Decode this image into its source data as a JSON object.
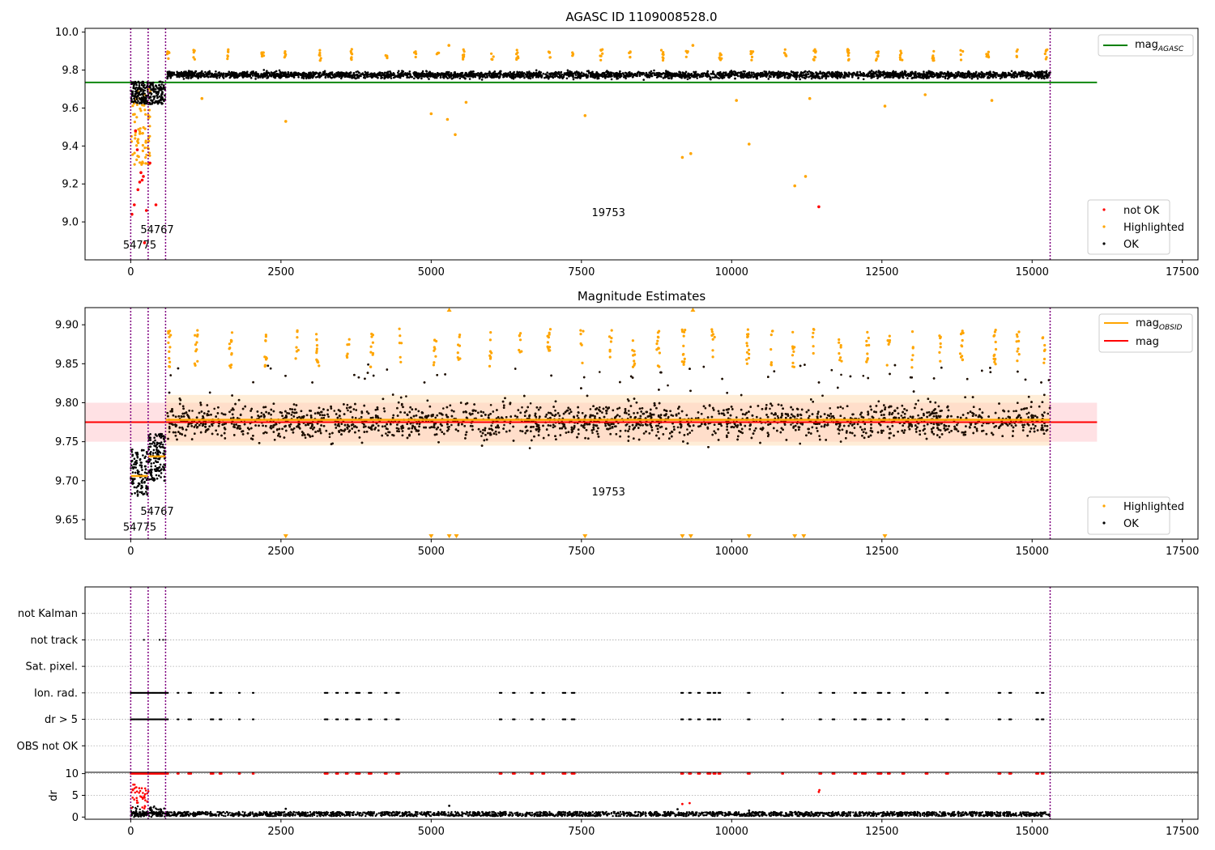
{
  "chart_data": [
    {
      "type": "scatter",
      "title": "AGASC ID 1109008528.0",
      "xlim": [
        -760,
        17760
      ],
      "ylim": [
        8.8,
        10.02
      ],
      "xticks": [
        "0",
        "2500",
        "5000",
        "7500",
        "10000",
        "12500",
        "15000",
        "17500"
      ],
      "yticks": [
        "9.0",
        "9.2",
        "9.4",
        "9.6",
        "9.8",
        "10.0"
      ],
      "xtick_values": [
        0,
        2500,
        5000,
        7500,
        10000,
        12500,
        15000,
        17500
      ],
      "ytick_values": [
        9.0,
        9.2,
        9.4,
        9.6,
        9.8,
        10.0
      ],
      "vlines": [
        0,
        290,
        580,
        15300
      ],
      "mag_agasc": 9.735,
      "mag_agasc_xrange": [
        -760,
        16080
      ],
      "obsid_labels": [
        {
          "text": "54775",
          "x": 150,
          "y": 8.86
        },
        {
          "text": "54767",
          "x": 440,
          "y": 8.94
        },
        {
          "text": "19753",
          "x": 7950,
          "y": 9.03
        }
      ],
      "ok_band": {
        "early": [
          9.62,
          9.74
        ],
        "main": [
          9.72,
          9.83
        ]
      },
      "highlighted_points": [
        [
          5295,
          9.93
        ],
        [
          9355,
          9.93
        ],
        [
          1185,
          9.65
        ],
        [
          2580,
          9.53
        ],
        [
          5000,
          9.57
        ],
        [
          5270,
          9.54
        ],
        [
          5400,
          9.46
        ],
        [
          5580,
          9.63
        ],
        [
          7560,
          9.56
        ],
        [
          9180,
          9.34
        ],
        [
          9320,
          9.36
        ],
        [
          10080,
          9.64
        ],
        [
          10290,
          9.41
        ],
        [
          11230,
          9.24
        ],
        [
          11300,
          9.65
        ],
        [
          12550,
          9.61
        ],
        [
          13220,
          9.67
        ],
        [
          14330,
          9.64
        ],
        [
          11050,
          9.19
        ]
      ],
      "not_ok_points": [
        [
          20,
          9.04
        ],
        [
          60,
          9.09
        ],
        [
          120,
          9.17
        ],
        [
          150,
          9.21
        ],
        [
          170,
          9.26
        ],
        [
          190,
          9.22
        ],
        [
          210,
          9.24
        ],
        [
          260,
          9.06
        ],
        [
          320,
          9.31
        ],
        [
          420,
          9.09
        ],
        [
          80,
          9.48
        ],
        [
          110,
          9.38
        ],
        [
          230,
          8.89
        ],
        [
          11450,
          9.08
        ]
      ],
      "legend": {
        "mag_line": "mag",
        "mag_sub": "AGASC",
        "not_ok": "not OK",
        "highlighted": "Highlighted",
        "ok": "OK"
      },
      "colors": {
        "ok": "#000000",
        "highlighted": "#ffa500",
        "not_ok": "#ff0000",
        "mag_agasc": "#008000",
        "vline": "#800080"
      }
    },
    {
      "type": "scatter",
      "title": "Magnitude Estimates",
      "xlim": [
        -760,
        17760
      ],
      "ylim": [
        9.625,
        9.922
      ],
      "xticks": [
        "0",
        "2500",
        "5000",
        "7500",
        "10000",
        "12500",
        "15000",
        "17500"
      ],
      "yticks": [
        "9.65",
        "9.70",
        "9.75",
        "9.80",
        "9.85",
        "9.90"
      ],
      "xtick_values": [
        0,
        2500,
        5000,
        7500,
        10000,
        12500,
        15000,
        17500
      ],
      "ytick_values": [
        9.65,
        9.7,
        9.75,
        9.8,
        9.85,
        9.9
      ],
      "vlines": [
        0,
        290,
        580,
        15300
      ],
      "mag": 9.775,
      "mag_band": [
        9.75,
        9.8
      ],
      "mag_xrange": [
        -760,
        16080
      ],
      "mag_obsid_segments": [
        {
          "x": [
            0,
            290
          ],
          "y": 9.706
        },
        {
          "x": [
            290,
            580
          ],
          "y": 9.731
        },
        {
          "x": [
            580,
            15300
          ],
          "y": 9.778
        }
      ],
      "obsid_labels": [
        {
          "text": "54775",
          "x": 150,
          "y": 9.636
        },
        {
          "text": "54767",
          "x": 440,
          "y": 9.656
        },
        {
          "text": "19753",
          "x": 7950,
          "y": 9.681
        }
      ],
      "legend": {
        "mag_obsid": "mag",
        "mag_obsid_sub": "OBSID",
        "mag": "mag",
        "highlighted": "Highlighted",
        "ok": "OK"
      },
      "colors": {
        "ok": "#000000",
        "highlighted": "#ffa500",
        "mag": "#ff0000",
        "mag_obsid": "#ffa500",
        "band": "#ffc8cd",
        "vline": "#800080"
      }
    },
    {
      "type": "scatter",
      "xlim": [
        -760,
        17760
      ],
      "ylim": [
        0,
        7
      ],
      "categories": [
        "not Kalman",
        "not track",
        "Sat. pixel.",
        "Ion. rad.",
        "dr > 5",
        "OBS not OK"
      ],
      "category_levels": [
        6,
        5,
        4,
        3,
        2,
        1
      ],
      "flag_segments": [
        [
          0,
          290
        ],
        [
          290,
          580
        ],
        [
          590,
          620
        ],
        [
          780,
          800
        ],
        [
          960,
          1010
        ],
        [
          1330,
          1380
        ],
        [
          1480,
          1520
        ],
        [
          1800,
          1820
        ],
        [
          2030,
          2050
        ],
        [
          3230,
          3280
        ],
        [
          3420,
          3450
        ],
        [
          3580,
          3610
        ],
        [
          3750,
          3810
        ],
        [
          3960,
          4010
        ],
        [
          4230,
          4270
        ],
        [
          4420,
          4470
        ],
        [
          6140,
          6180
        ],
        [
          6360,
          6400
        ],
        [
          6660,
          6690
        ],
        [
          6850,
          6890
        ],
        [
          7190,
          7240
        ],
        [
          7340,
          7390
        ],
        [
          9160,
          9190
        ],
        [
          9290,
          9330
        ],
        [
          9440,
          9480
        ],
        [
          9600,
          9650
        ],
        [
          9700,
          9740
        ],
        [
          9780,
          9820
        ],
        [
          10270,
          10300
        ],
        [
          10840,
          10860
        ],
        [
          11460,
          11490
        ],
        [
          11680,
          11710
        ],
        [
          12040,
          12070
        ],
        [
          12170,
          12240
        ],
        [
          12430,
          12490
        ],
        [
          12600,
          12640
        ],
        [
          12840,
          12880
        ],
        [
          13230,
          13260
        ],
        [
          13570,
          13600
        ],
        [
          14440,
          14470
        ],
        [
          14620,
          14650
        ],
        [
          15070,
          15110
        ],
        [
          15160,
          15200
        ]
      ],
      "not_track_points": [
        [
          220,
          5
        ],
        [
          480,
          5
        ],
        [
          540,
          5
        ],
        [
          580,
          5
        ]
      ],
      "colors": {
        "point": "#000000",
        "grid": "#aaaaaa",
        "vline": "#800080"
      }
    },
    {
      "type": "scatter",
      "xlim": [
        -760,
        17760
      ],
      "ylim": [
        -0.5,
        10.3
      ],
      "ylabel": "dr",
      "xticks": [
        "0",
        "2500",
        "5000",
        "7500",
        "10000",
        "12500",
        "15000",
        "17500"
      ],
      "yticks": [
        "0",
        "5",
        "10"
      ],
      "xtick_values": [
        0,
        2500,
        5000,
        7500,
        10000,
        12500,
        15000,
        17500
      ],
      "ytick_values": [
        0,
        5,
        10
      ],
      "dr_typical_range": [
        0.2,
        1.2
      ],
      "dr_capped_value": 10,
      "red_points": [
        [
          9180,
          3.0
        ],
        [
          9300,
          3.2
        ],
        [
          11450,
          5.8
        ],
        [
          11460,
          6.2
        ]
      ],
      "black_outliers": [
        [
          5300,
          2.6
        ],
        [
          2580,
          1.9
        ],
        [
          9100,
          1.8
        ],
        [
          10290,
          1.5
        ]
      ],
      "colors": {
        "point": "#000000",
        "flag": "#ff0000",
        "grid": "#aaaaaa",
        "vline": "#800080"
      }
    }
  ]
}
